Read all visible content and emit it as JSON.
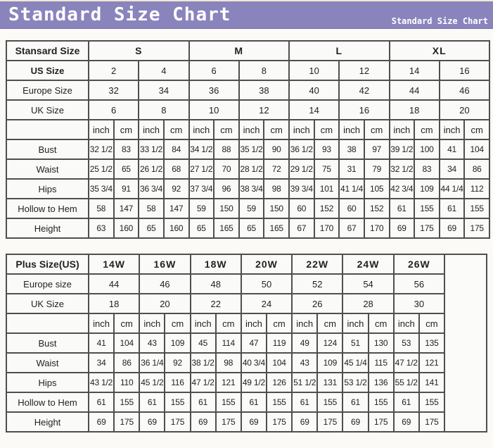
{
  "banner": {
    "title": "Standard Size Chart",
    "subtitle": "Standard Size Chart",
    "bg_color": "#8a84bd",
    "text_color": "#ffffff"
  },
  "colors": {
    "table_border": "#4f4f4f",
    "cell_background": "#fafaf9",
    "page_background": "#fbfaf6"
  },
  "chart_data": [
    {
      "type": "table",
      "name": "standard-size-chart",
      "corner_label": "Stansard Size",
      "groups": [
        {
          "label": "S",
          "span": 2
        },
        {
          "label": "M",
          "span": 2
        },
        {
          "label": "L",
          "span": 2
        },
        {
          "label": "XL",
          "span": 2
        }
      ],
      "size_rows": [
        {
          "label": "US Size",
          "bold": true,
          "values": [
            "2",
            "4",
            "6",
            "8",
            "10",
            "12",
            "14",
            "16"
          ]
        },
        {
          "label": "Europe Size",
          "bold": false,
          "values": [
            "32",
            "34",
            "36",
            "38",
            "40",
            "42",
            "44",
            "46"
          ]
        },
        {
          "label": "UK Size",
          "bold": false,
          "values": [
            "6",
            "8",
            "10",
            "12",
            "14",
            "16",
            "18",
            "20"
          ]
        }
      ],
      "unit_labels": [
        "inch",
        "cm"
      ],
      "measurement_rows": [
        {
          "label": "Bust",
          "pairs": [
            [
              "32 1/2",
              "83"
            ],
            [
              "33 1/2",
              "84"
            ],
            [
              "34 1/2",
              "88"
            ],
            [
              "35 1/2",
              "90"
            ],
            [
              "36 1/2",
              "93"
            ],
            [
              "38",
              "97"
            ],
            [
              "39 1/2",
              "100"
            ],
            [
              "41",
              "104"
            ]
          ]
        },
        {
          "label": "Waist",
          "pairs": [
            [
              "25 1/2",
              "65"
            ],
            [
              "26 1/2",
              "68"
            ],
            [
              "27 1/2",
              "70"
            ],
            [
              "28 1/2",
              "72"
            ],
            [
              "29 1/2",
              "75"
            ],
            [
              "31",
              "79"
            ],
            [
              "32 1/2",
              "83"
            ],
            [
              "34",
              "86"
            ]
          ]
        },
        {
          "label": "Hips",
          "pairs": [
            [
              "35 3/4",
              "91"
            ],
            [
              "36 3/4",
              "92"
            ],
            [
              "37 3/4",
              "96"
            ],
            [
              "38 3/4",
              "98"
            ],
            [
              "39 3/4",
              "101"
            ],
            [
              "41 1/4",
              "105"
            ],
            [
              "42 3/4",
              "109"
            ],
            [
              "44 1/4",
              "112"
            ]
          ]
        },
        {
          "label": "Hollow to Hem",
          "pairs": [
            [
              "58",
              "147"
            ],
            [
              "58",
              "147"
            ],
            [
              "59",
              "150"
            ],
            [
              "59",
              "150"
            ],
            [
              "60",
              "152"
            ],
            [
              "60",
              "152"
            ],
            [
              "61",
              "155"
            ],
            [
              "61",
              "155"
            ]
          ]
        },
        {
          "label": "Height",
          "pairs": [
            [
              "63",
              "160"
            ],
            [
              "65",
              "160"
            ],
            [
              "65",
              "165"
            ],
            [
              "65",
              "165"
            ],
            [
              "67",
              "170"
            ],
            [
              "67",
              "170"
            ],
            [
              "69",
              "175"
            ],
            [
              "69",
              "175"
            ]
          ]
        }
      ],
      "trailing_empty_column": false
    },
    {
      "type": "table",
      "name": "plus-size-chart",
      "corner_label": "Plus Size(US)",
      "groups": [
        {
          "label": "14W",
          "span": 1
        },
        {
          "label": "16W",
          "span": 1
        },
        {
          "label": "18W",
          "span": 1
        },
        {
          "label": "20W",
          "span": 1
        },
        {
          "label": "22W",
          "span": 1
        },
        {
          "label": "24W",
          "span": 1
        },
        {
          "label": "26W",
          "span": 1
        }
      ],
      "size_rows": [
        {
          "label": "Europe size",
          "bold": false,
          "values": [
            "44",
            "46",
            "48",
            "50",
            "52",
            "54",
            "56"
          ]
        },
        {
          "label": "UK Size",
          "bold": false,
          "values": [
            "18",
            "20",
            "22",
            "24",
            "26",
            "28",
            "30"
          ]
        }
      ],
      "unit_labels": [
        "inch",
        "cm"
      ],
      "measurement_rows": [
        {
          "label": "Bust",
          "pairs": [
            [
              "41",
              "104"
            ],
            [
              "43",
              "109"
            ],
            [
              "45",
              "114"
            ],
            [
              "47",
              "119"
            ],
            [
              "49",
              "124"
            ],
            [
              "51",
              "130"
            ],
            [
              "53",
              "135"
            ]
          ]
        },
        {
          "label": "Waist",
          "pairs": [
            [
              "34",
              "86"
            ],
            [
              "36 1/4",
              "92"
            ],
            [
              "38 1/2",
              "98"
            ],
            [
              "40 3/4",
              "104"
            ],
            [
              "43",
              "109"
            ],
            [
              "45 1/4",
              "115"
            ],
            [
              "47 1/2",
              "121"
            ]
          ]
        },
        {
          "label": "Hips",
          "pairs": [
            [
              "43 1/2",
              "110"
            ],
            [
              "45 1/2",
              "116"
            ],
            [
              "47 1/2",
              "121"
            ],
            [
              "49 1/2",
              "126"
            ],
            [
              "51 1/2",
              "131"
            ],
            [
              "53 1/2",
              "136"
            ],
            [
              "55 1/2",
              "141"
            ]
          ]
        },
        {
          "label": "Hollow to Hem",
          "pairs": [
            [
              "61",
              "155"
            ],
            [
              "61",
              "155"
            ],
            [
              "61",
              "155"
            ],
            [
              "61",
              "155"
            ],
            [
              "61",
              "155"
            ],
            [
              "61",
              "155"
            ],
            [
              "61",
              "155"
            ]
          ]
        },
        {
          "label": "Height",
          "pairs": [
            [
              "69",
              "175"
            ],
            [
              "69",
              "175"
            ],
            [
              "69",
              "175"
            ],
            [
              "69",
              "175"
            ],
            [
              "69",
              "175"
            ],
            [
              "69",
              "175"
            ],
            [
              "69",
              "175"
            ]
          ]
        }
      ],
      "trailing_empty_column": true
    }
  ]
}
